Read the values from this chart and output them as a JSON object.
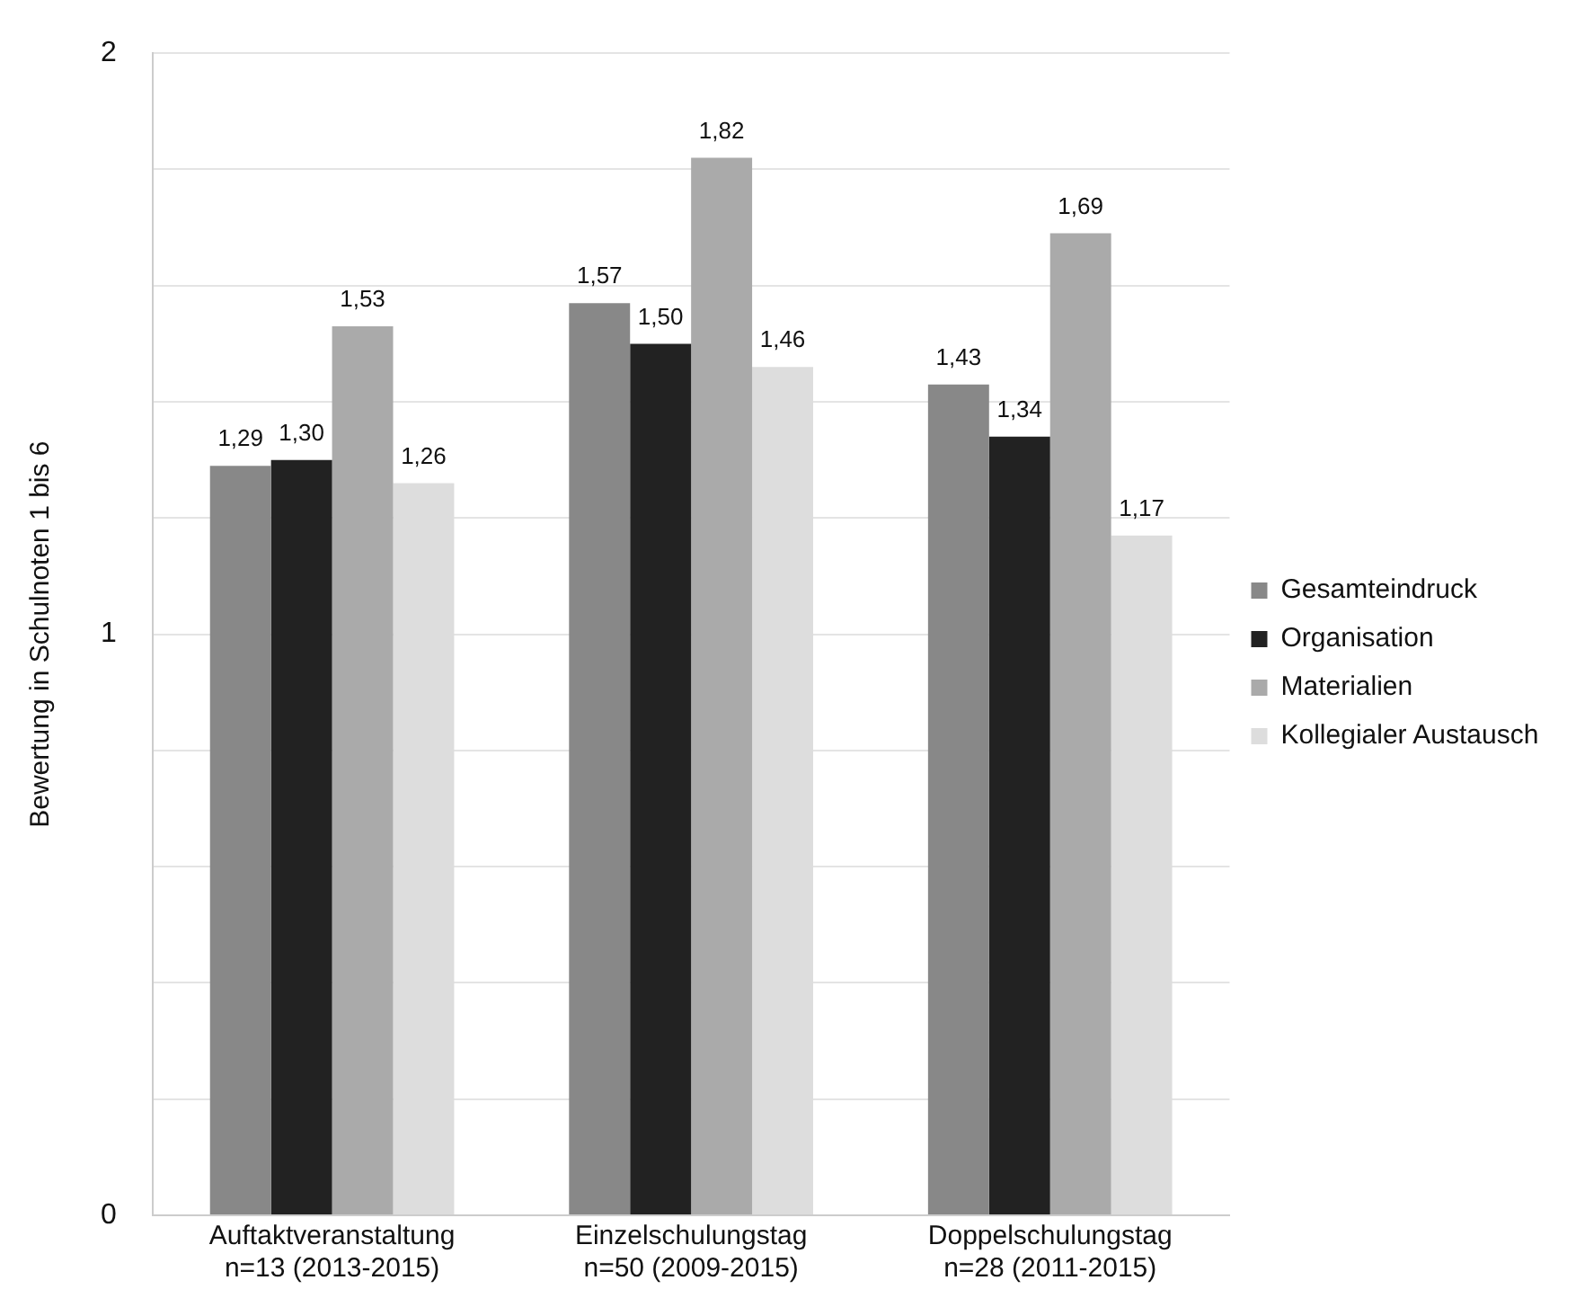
{
  "chart_data": {
    "type": "bar",
    "ylabel": "Bewertung in Schulnoten 1 bis 6",
    "categories": [
      "Auftaktveranstaltung\nn=13 (2013-2015)",
      "Einzelschulungstag\nn=50 (2009-2015)",
      "Doppelschulungstag\nn=28 (2011-2015)"
    ],
    "series": [
      {
        "name": "Gesamteindruck",
        "color": "#888888",
        "values": [
          1.29,
          1.57,
          1.43
        ],
        "value_labels": [
          "1,29",
          "1,57",
          "1,43"
        ]
      },
      {
        "name": "Organisation",
        "color": "#222222",
        "values": [
          1.3,
          1.5,
          1.34
        ],
        "value_labels": [
          "1,30",
          "1,50",
          "1,34"
        ]
      },
      {
        "name": "Materialien",
        "color": "#aaaaaa",
        "values": [
          1.53,
          1.82,
          1.69
        ],
        "value_labels": [
          "1,53",
          "1,82",
          "1,69"
        ]
      },
      {
        "name": "Kollegialer Austausch",
        "color": "#dddddd",
        "values": [
          1.26,
          1.46,
          1.17
        ],
        "value_labels": [
          "1,26",
          "1,46",
          "1,17"
        ]
      }
    ],
    "ylim": [
      0,
      2
    ],
    "yticks": [
      0,
      {
        "value": 0.2,
        "label": null
      },
      {
        "value": 0.4,
        "label": null
      },
      {
        "value": 0.6,
        "label": null
      },
      {
        "value": 0.8,
        "label": null
      },
      1,
      {
        "value": 1.2,
        "label": null
      },
      {
        "value": 1.4,
        "label": null
      },
      {
        "value": 1.6,
        "label": null
      },
      {
        "value": 1.8,
        "label": null
      },
      2
    ],
    "grid": "y",
    "legend": "right"
  }
}
